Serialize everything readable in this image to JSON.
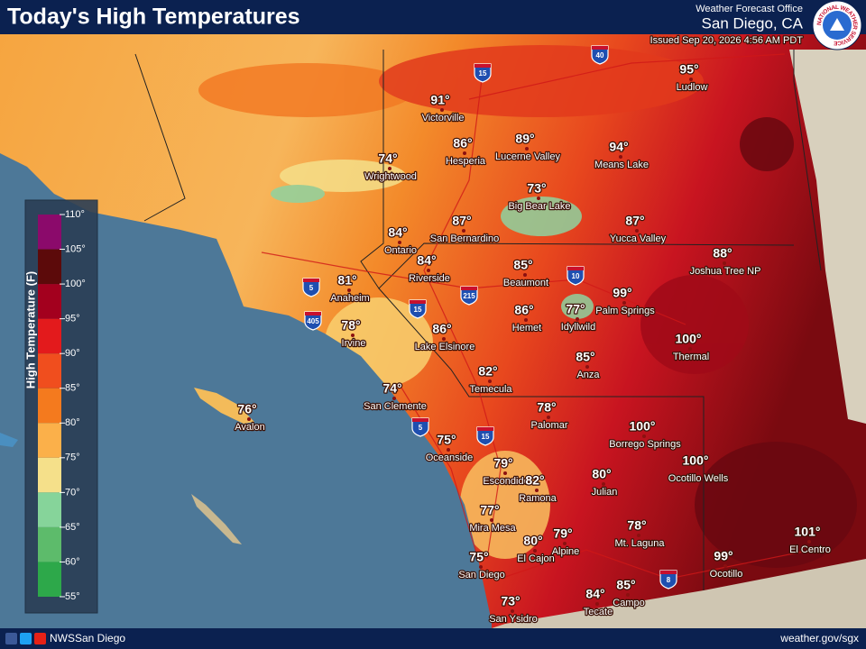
{
  "header": {
    "title": "Today's High Temperatures",
    "office_label": "Weather Forecast Office",
    "office": "San Diego, CA",
    "issued": "Issued Sep 20, 2026 4:56 AM PDT",
    "logo_text": "NATIONAL WEATHER SERVICE"
  },
  "legend": {
    "title": "High Temperature (F)",
    "ticks": [
      "110°",
      "105°",
      "100°",
      "95°",
      "90°",
      "85°",
      "80°",
      "75°",
      "70°",
      "65°",
      "60°",
      "55°"
    ]
  },
  "cities": [
    {
      "temp": "95°",
      "name": "Ludlow"
    },
    {
      "temp": "91°",
      "name": "Victorville"
    },
    {
      "temp": "86°",
      "name": "Hesperia"
    },
    {
      "temp": "89°",
      "name": "Lucerne Valley"
    },
    {
      "temp": "94°",
      "name": "Means Lake"
    },
    {
      "temp": "74°",
      "name": "Wrightwood"
    },
    {
      "temp": "73°",
      "name": "Big Bear Lake"
    },
    {
      "temp": "84°",
      "name": "Ontario"
    },
    {
      "temp": "87°",
      "name": "San Bernardino"
    },
    {
      "temp": "87°",
      "name": "Yucca Valley"
    },
    {
      "temp": "88°",
      "name": "Joshua Tree NP"
    },
    {
      "temp": "84°",
      "name": "Riverside"
    },
    {
      "temp": "85°",
      "name": "Beaumont"
    },
    {
      "temp": "81°",
      "name": "Anaheim"
    },
    {
      "temp": "99°",
      "name": "Palm Springs"
    },
    {
      "temp": "78°",
      "name": "Irvine"
    },
    {
      "temp": "86°",
      "name": "Hemet"
    },
    {
      "temp": "77°",
      "name": "Idyllwild"
    },
    {
      "temp": "86°",
      "name": "Lake Elsinore"
    },
    {
      "temp": "100°",
      "name": "Thermal"
    },
    {
      "temp": "85°",
      "name": "Anza"
    },
    {
      "temp": "82°",
      "name": "Temecula"
    },
    {
      "temp": "74°",
      "name": "San Clemente"
    },
    {
      "temp": "76°",
      "name": "Avalon"
    },
    {
      "temp": "78°",
      "name": "Palomar"
    },
    {
      "temp": "100°",
      "name": "Borrego Springs"
    },
    {
      "temp": "75°",
      "name": "Oceanside"
    },
    {
      "temp": "100°",
      "name": "Ocotillo Wells"
    },
    {
      "temp": "79°",
      "name": "Escondido"
    },
    {
      "temp": "82°",
      "name": "Ramona"
    },
    {
      "temp": "80°",
      "name": "Julian"
    },
    {
      "temp": "77°",
      "name": "Mira Mesa"
    },
    {
      "temp": "78°",
      "name": "Mt. Laguna"
    },
    {
      "temp": "79°",
      "name": "Alpine"
    },
    {
      "temp": "80°",
      "name": "El Cajon"
    },
    {
      "temp": "101°",
      "name": "El Centro"
    },
    {
      "temp": "99°",
      "name": "Ocotillo"
    },
    {
      "temp": "75°",
      "name": "San Diego"
    },
    {
      "temp": "85°",
      "name": "Campo"
    },
    {
      "temp": "84°",
      "name": "Tecate"
    },
    {
      "temp": "73°",
      "name": "San Ysidro"
    }
  ],
  "highways": [
    "40",
    "15",
    "10",
    "5",
    "405",
    "15",
    "215",
    "5",
    "15",
    "8"
  ],
  "footer": {
    "social": "NWSSan Diego",
    "url": "weather.gov/sgx"
  }
}
